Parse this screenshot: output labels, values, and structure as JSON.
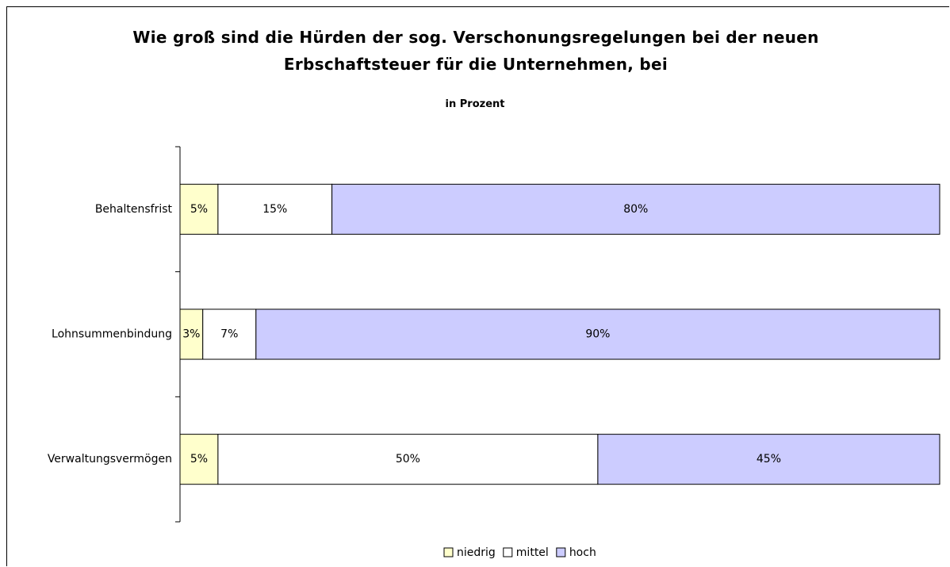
{
  "chart_data": {
    "type": "bar",
    "orientation": "horizontal",
    "stacked": true,
    "title": "Wie groß sind die Hürden der sog. Verschonungsregelungen bei der neuen Erbschaftsteuer für die Unternehmen, bei",
    "subtitle": "in Prozent",
    "categories": [
      "Behaltensfrist",
      "Lohnsummenbindung",
      "Verwaltungsvermögen"
    ],
    "xlim": [
      0,
      100
    ],
    "legend": "bottom",
    "series": [
      {
        "name": "niedrig",
        "color": "#ffffcc",
        "values": [
          5,
          3,
          5
        ],
        "value_labels": [
          "5%",
          "3%",
          "5%"
        ]
      },
      {
        "name": "mittel",
        "color": "#ffffff",
        "values": [
          15,
          7,
          50
        ],
        "value_labels": [
          "15%",
          "7%",
          "50%"
        ]
      },
      {
        "name": "hoch",
        "color": "#ccccff",
        "values": [
          80,
          90,
          45
        ],
        "value_labels": [
          "80%",
          "90%",
          "45%"
        ]
      }
    ]
  }
}
